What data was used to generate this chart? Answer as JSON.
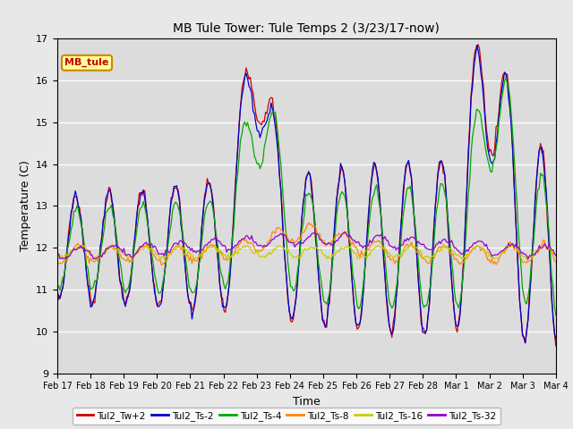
{
  "title": "MB Tule Tower: Tule Temps 2 (3/23/17-now)",
  "xlabel": "Time",
  "ylabel": "Temperature (C)",
  "ylim": [
    9.0,
    17.0
  ],
  "yticks": [
    9.0,
    10.0,
    11.0,
    12.0,
    13.0,
    14.0,
    15.0,
    16.0,
    17.0
  ],
  "bg_color": "#e8e8e8",
  "plot_bg_color": "#dcdcdc",
  "series_colors": {
    "Tul2_Tw+2": "#cc0000",
    "Tul2_Ts-2": "#0000cc",
    "Tul2_Ts-4": "#00aa00",
    "Tul2_Ts-8": "#ff8800",
    "Tul2_Ts-16": "#cccc00",
    "Tul2_Ts-32": "#9900cc"
  },
  "x_tick_labels": [
    "Feb 17",
    "Feb 18",
    "Feb 19",
    "Feb 20",
    "Feb 21",
    "Feb 22",
    "Feb 23",
    "Feb 24",
    "Feb 25",
    "Feb 26",
    "Feb 27",
    "Feb 28",
    "Mar 1",
    "Mar 2",
    "Mar 3",
    "Mar 4"
  ],
  "n_days": 16,
  "figsize": [
    6.4,
    4.8
  ],
  "dpi": 100
}
